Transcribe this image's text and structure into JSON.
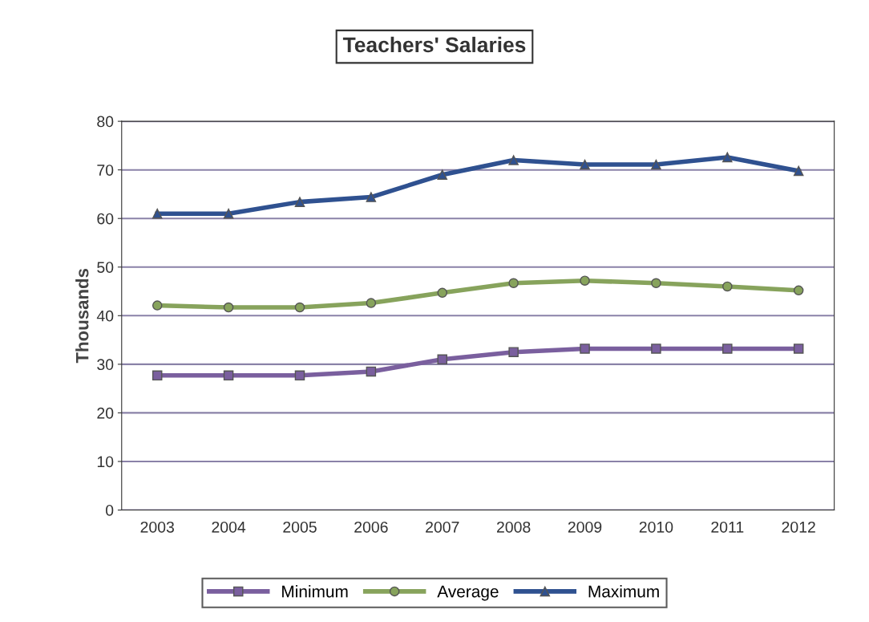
{
  "chart_data": {
    "type": "line",
    "title": "Teachers' Salaries",
    "ylabel": "Thousands",
    "categories": [
      "2003",
      "2004",
      "2005",
      "2006",
      "2007",
      "2008",
      "2009",
      "2010",
      "2011",
      "2012"
    ],
    "series": [
      {
        "name": "Minimum",
        "color": "#7a5f9e",
        "marker": "square",
        "values": [
          27.7,
          27.7,
          27.7,
          28.5,
          31,
          32.5,
          33.2,
          33.2,
          33.2,
          33.2
        ]
      },
      {
        "name": "Average",
        "color": "#87a35c",
        "marker": "circle",
        "values": [
          42.1,
          41.7,
          41.7,
          42.6,
          44.7,
          46.7,
          47.2,
          46.7,
          46,
          45.2
        ]
      },
      {
        "name": "Maximum",
        "color": "#2f5190",
        "marker": "triangle",
        "values": [
          61,
          61,
          63.4,
          64.4,
          69,
          72,
          71.1,
          71.1,
          72.6,
          69.8
        ]
      }
    ],
    "ylim": [
      0,
      80
    ],
    "yticks": [
      0,
      10,
      20,
      30,
      40,
      50,
      60,
      70,
      80
    ],
    "grid": "y",
    "legend": "bottom",
    "line_style": "solid"
  }
}
